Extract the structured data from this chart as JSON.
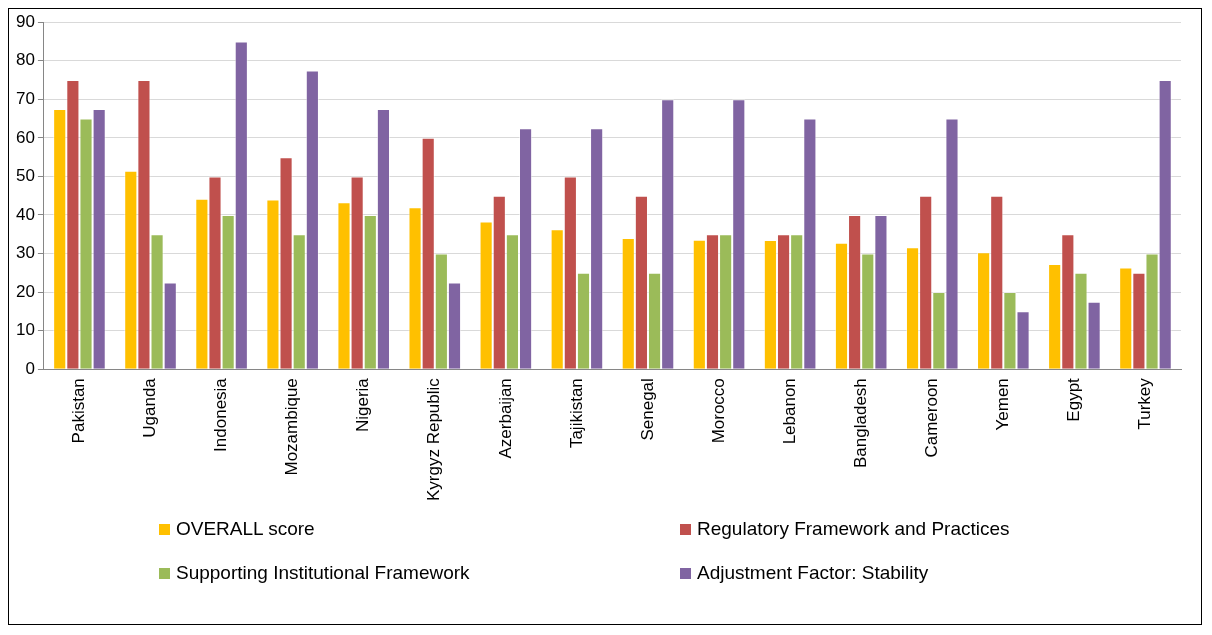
{
  "chart_data": {
    "type": "bar",
    "categories": [
      "Pakistan",
      "Uganda",
      "Indonesia",
      "Mozambique",
      "Nigeria",
      "Kyrgyz Republic",
      "Azerbaijan",
      "Tajikistan",
      "Senegal",
      "Morocco",
      "Lebanon",
      "Bangladesh",
      "Cameroon",
      "Yemen",
      "Egypt",
      "Turkey"
    ],
    "series": [
      {
        "name": "OVERALL score",
        "color": "#ffc000",
        "values": [
          67.5,
          51.5,
          44.2,
          44,
          43.3,
          42,
          38.3,
          36.3,
          34,
          33.6,
          33.5,
          32.8,
          31.6,
          30.3,
          27.3,
          26.4
        ]
      },
      {
        "name": "Regulatory Framework and Practices",
        "color": "#c0504d",
        "values": [
          75,
          75,
          50,
          55,
          50,
          60,
          45,
          50,
          45,
          35,
          35,
          40,
          45,
          45,
          35,
          25
        ]
      },
      {
        "name": "Supporting Institutional Framework",
        "color": "#9bbb59",
        "values": [
          65,
          35,
          40,
          35,
          40,
          30,
          35,
          25,
          25,
          35,
          35,
          30,
          20,
          20,
          25,
          30
        ]
      },
      {
        "name": "Adjustment Factor: Stability",
        "color": "#8064a2",
        "values": [
          67.5,
          22.5,
          85,
          77.5,
          67.5,
          22.5,
          62.5,
          62.5,
          70,
          70,
          65,
          40,
          65,
          15,
          17.5,
          75
        ]
      }
    ],
    "ylim": [
      0,
      90
    ],
    "yticks": [
      0,
      10,
      20,
      30,
      40,
      50,
      60,
      70,
      80,
      90
    ],
    "grid": "y",
    "legend": "bottom"
  }
}
